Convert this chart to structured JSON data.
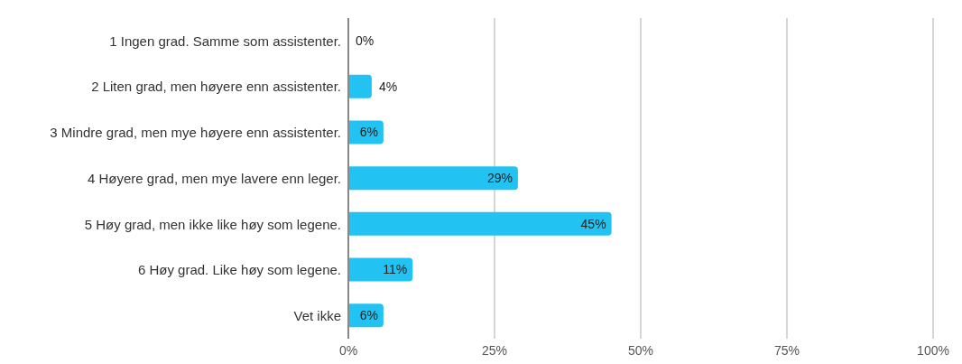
{
  "chart_data": {
    "type": "bar",
    "orientation": "horizontal",
    "categories": [
      "1 Ingen grad. Samme som assistenter.",
      "2 Liten grad, men høyere enn assistenter.",
      "3 Mindre grad, men mye høyere enn assistenter.",
      "4 Høyere grad, men mye lavere enn leger.",
      "5 Høy grad, men ikke like høy som legene.",
      "6 Høy grad. Like høy som legene.",
      "Vet ikke"
    ],
    "values": [
      0,
      4,
      6,
      29,
      45,
      11,
      6
    ],
    "value_labels": [
      "0%",
      "4%",
      "6%",
      "29%",
      "45%",
      "11%",
      "6%"
    ],
    "color": "#22c3f3",
    "xlim": [
      0,
      100
    ],
    "xticks": [
      {
        "value": 0,
        "label": "0%"
      },
      {
        "value": 25,
        "label": "25%"
      },
      {
        "value": 50,
        "label": "50%"
      },
      {
        "value": 75,
        "label": "75%"
      },
      {
        "value": 100,
        "label": "100%"
      }
    ],
    "grid": "x"
  }
}
